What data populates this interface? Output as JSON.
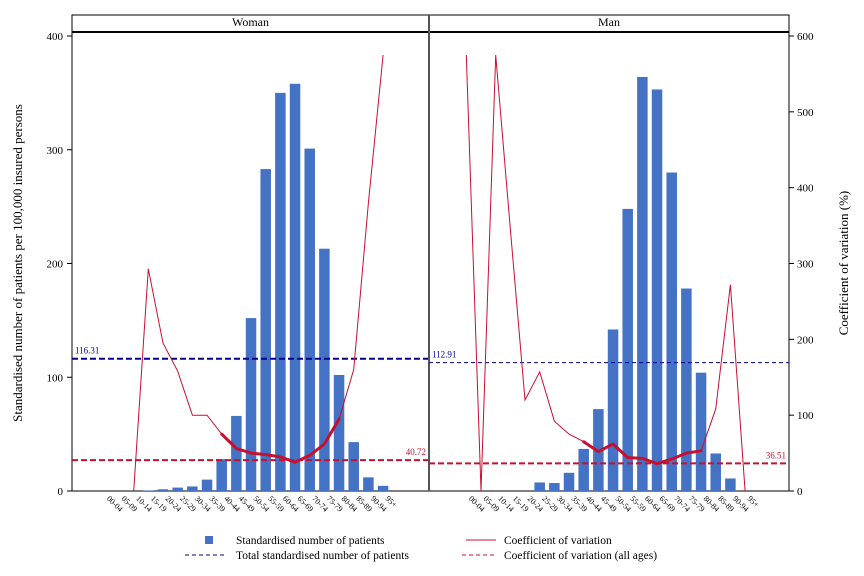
{
  "chart_data": {
    "type": "bar",
    "categories": [
      "00-04",
      "05-09",
      "10-14",
      "15-19",
      "20-24",
      "25-29",
      "30-34",
      "35-39",
      "40-44",
      "45-49",
      "50-54",
      "55-59",
      "60-64",
      "65-69",
      "70-74",
      "75-79",
      "80-84",
      "85-89",
      "90-94",
      "95+"
    ],
    "ylabel": "Standardised number of patients per 100,000 insured persons",
    "y2label": "Coefficient of variation (%)",
    "ylim": [
      0,
      400
    ],
    "y2lim": [
      0,
      600
    ],
    "yticks": [
      0,
      100,
      200,
      300,
      400
    ],
    "y2ticks": [
      0,
      100,
      200,
      300,
      400,
      500,
      600
    ],
    "legend_position": "bottom",
    "grid": false,
    "colors": {
      "bars": "#4472c4",
      "cv": "#c8102e",
      "total": "#00008b",
      "cv_all": "#c8102e"
    },
    "panels": [
      {
        "name": "Woman",
        "bars": [
          0,
          0,
          0,
          0.5,
          1.5,
          3,
          4,
          10,
          28,
          66,
          152,
          283,
          350,
          358,
          301,
          213,
          102,
          43,
          12,
          4.5
        ],
        "cv": [
          null,
          null,
          0,
          293,
          195,
          158,
          100,
          100,
          75,
          56,
          50,
          48,
          45,
          38,
          47,
          62,
          95,
          160,
          380,
          575
        ],
        "cv_highlight_from": 8,
        "cv_highlight_to": 16,
        "total_standardised": 116.31,
        "total_label": "116.31",
        "cv_all_ages": 40.72,
        "cv_all_label": "40.72"
      },
      {
        "name": "Man",
        "bars": [
          0,
          0,
          0,
          0,
          0,
          7.5,
          7,
          16,
          37,
          72,
          142,
          248,
          364,
          353,
          280,
          178,
          104,
          33,
          11,
          0
        ],
        "cv": [
          575,
          0,
          575,
          346,
          120,
          157,
          92,
          75,
          65,
          52,
          62,
          44,
          43,
          36,
          42,
          50,
          53,
          108,
          272,
          0
        ],
        "cv_highlight_from": 8,
        "cv_highlight_to": 16,
        "total_standardised": 112.91,
        "total_label": "112.91",
        "cv_all_ages": 36.51,
        "cv_all_label": "36.51"
      }
    ],
    "legend": [
      {
        "label": "Standardised number of patients",
        "kind": "square"
      },
      {
        "label": "Coefficient of variation",
        "kind": "solid-red"
      },
      {
        "label": "Total standardised number of patients",
        "kind": "dash-navy"
      },
      {
        "label": "Coefficient of variation (all ages)",
        "kind": "dash-red"
      }
    ]
  }
}
